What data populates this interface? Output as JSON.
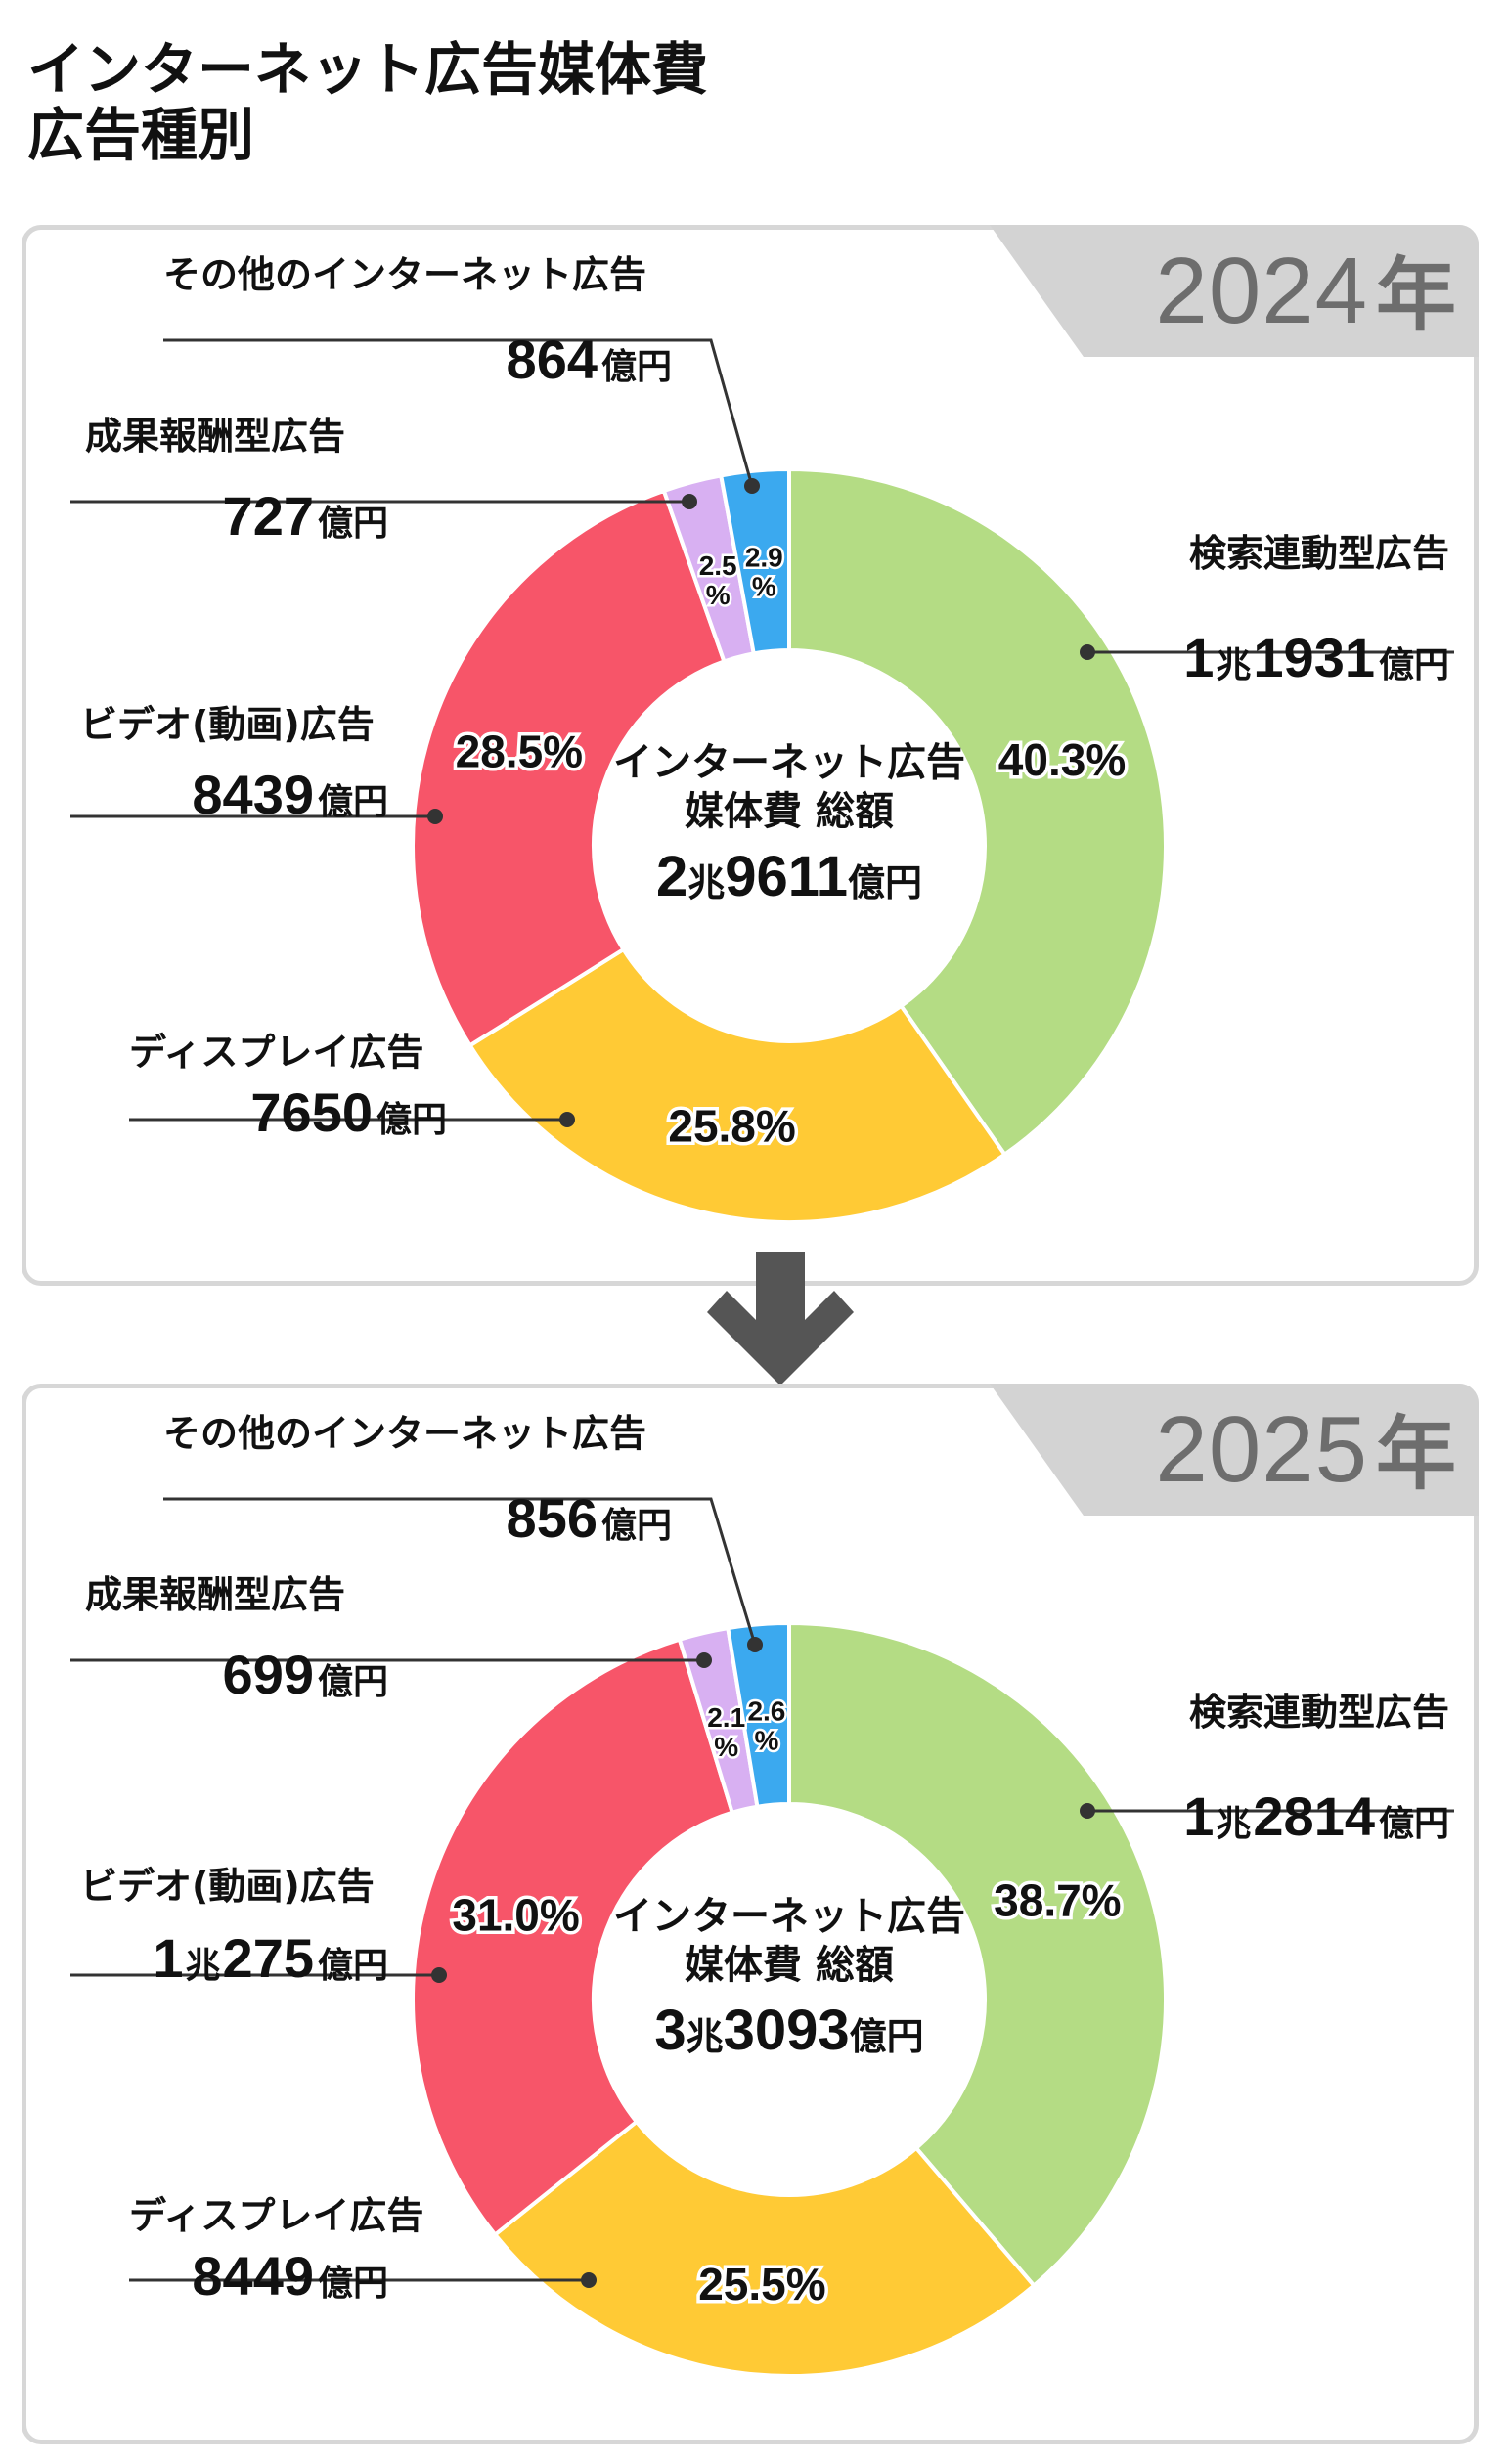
{
  "title": {
    "line1": "インターネット広告媒体費",
    "line2": "広告種別"
  },
  "panels": [
    {
      "year": "2024",
      "year_suffix": "年",
      "total_label_1": "インターネット広告",
      "total_label_2": "媒体費 総額",
      "total_cho": "2",
      "total_cho_unit": "兆",
      "total_rest": "9611",
      "total_unit": "億円",
      "segments": [
        {
          "name": "検索連動型広告",
          "pct": 40.3,
          "pct_label": "40.3%",
          "cho": "1",
          "rest": "1931",
          "color": "#b4dc84"
        },
        {
          "name": "ディスプレイ広告",
          "pct": 25.8,
          "pct_label": "25.8%",
          "cho": "",
          "rest": "7650",
          "color": "#ffca35"
        },
        {
          "name": "ビデオ(動画)広告",
          "pct": 28.5,
          "pct_label": "28.5%",
          "cho": "",
          "rest": "8439",
          "color": "#f75569"
        },
        {
          "name": "成果報酬型広告",
          "pct": 2.5,
          "pct_label": "2.5%",
          "cho": "",
          "rest": "727",
          "color": "#d8b0f2"
        },
        {
          "name": "その他のインターネット広告",
          "pct": 2.9,
          "pct_label": "2.9%",
          "cho": "",
          "rest": "864",
          "color": "#3ba9ef"
        }
      ]
    },
    {
      "year": "2025",
      "year_suffix": "年",
      "total_label_1": "インターネット広告",
      "total_label_2": "媒体費 総額",
      "total_cho": "3",
      "total_cho_unit": "兆",
      "total_rest": "3093",
      "total_unit": "億円",
      "segments": [
        {
          "name": "検索連動型広告",
          "pct": 38.7,
          "pct_label": "38.7%",
          "cho": "1",
          "rest": "2814",
          "color": "#b4dc84"
        },
        {
          "name": "ディスプレイ広告",
          "pct": 25.5,
          "pct_label": "25.5%",
          "cho": "",
          "rest": "8449",
          "color": "#ffca35"
        },
        {
          "name": "ビデオ(動画)広告",
          "pct": 31.0,
          "pct_label": "31.0%",
          "cho": "1",
          "rest": "275",
          "color": "#f75569"
        },
        {
          "name": "成果報酬型広告",
          "pct": 2.1,
          "pct_label": "2.1%",
          "cho": "",
          "rest": "699",
          "color": "#d8b0f2"
        },
        {
          "name": "その他のインターネット広告",
          "pct": 2.6,
          "pct_label": "2.6%",
          "cho": "",
          "rest": "856",
          "color": "#3ba9ef"
        }
      ]
    }
  ],
  "unit_oku": "億円",
  "unit_cho": "兆",
  "chart_data": [
    {
      "type": "pie",
      "title": "2024年",
      "center_label": "インターネット広告 媒体費 総額 2兆9611億円",
      "categories": [
        "検索連動型広告",
        "ディスプレイ広告",
        "ビデオ(動画)広告",
        "成果報酬型広告",
        "その他のインターネット広告"
      ],
      "values": [
        40.3,
        25.8,
        28.5,
        2.5,
        2.9
      ],
      "amounts_oku_yen": [
        11931,
        7650,
        8439,
        727,
        864
      ]
    },
    {
      "type": "pie",
      "title": "2025年",
      "center_label": "インターネット広告 媒体費 総額 3兆3093億円",
      "categories": [
        "検索連動型広告",
        "ディスプレイ広告",
        "ビデオ(動画)広告",
        "成果報酬型広告",
        "その他のインターネット広告"
      ],
      "values": [
        38.7,
        25.5,
        31.0,
        2.1,
        2.6
      ],
      "amounts_oku_yen": [
        12814,
        8449,
        10275,
        699,
        856
      ]
    }
  ]
}
